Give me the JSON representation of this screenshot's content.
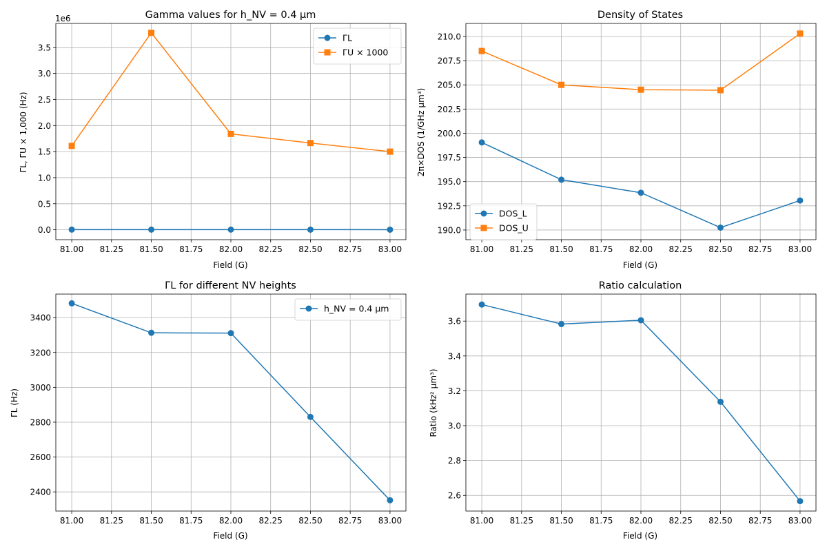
{
  "colors": {
    "blue": "#1f77b4",
    "orange": "#ff7f0e",
    "grid": "#b0b0b0"
  },
  "chart_data": [
    {
      "type": "line",
      "title": "Gamma values for h_NV = 0.4 μm",
      "xlabel": "Field (G)",
      "ylabel": "ΓL, ΓU × 1,000 (Hz)",
      "offset_text": "1e6",
      "x": [
        81.0,
        81.5,
        82.0,
        82.5,
        83.0
      ],
      "xlim": [
        80.9,
        83.1
      ],
      "ylim": [
        -190000,
        3960000
      ],
      "xticks": [
        81.0,
        81.25,
        81.5,
        81.75,
        82.0,
        82.25,
        82.5,
        82.75,
        83.0
      ],
      "xtick_labels": [
        "81.00",
        "81.25",
        "81.50",
        "81.75",
        "82.00",
        "82.25",
        "82.50",
        "82.75",
        "83.00"
      ],
      "yticks": [
        0,
        500000,
        1000000,
        1500000,
        2000000,
        2500000,
        3000000,
        3500000
      ],
      "ytick_labels": [
        "0.0",
        "0.5",
        "1.0",
        "1.5",
        "2.0",
        "2.5",
        "3.0",
        "3.5"
      ],
      "grid": true,
      "legend": "upper-right",
      "series": [
        {
          "name": "ΓL",
          "color": "#1f77b4",
          "marker": "circle",
          "values": [
            3480,
            3312,
            3310,
            2830,
            2350
          ]
        },
        {
          "name": "ΓU × 1000",
          "color": "#ff7f0e",
          "marker": "square",
          "values": [
            1610000,
            3780000,
            1840000,
            1665000,
            1500000
          ]
        }
      ]
    },
    {
      "type": "line",
      "title": "Density of States",
      "xlabel": "Field (G)",
      "ylabel": "2π×DOS (1/GHz μm³)",
      "offset_text": "",
      "x": [
        81.0,
        81.5,
        82.0,
        82.5,
        83.0
      ],
      "xlim": [
        80.9,
        83.1
      ],
      "ylim": [
        189.0,
        211.35
      ],
      "xticks": [
        81.0,
        81.25,
        81.5,
        81.75,
        82.0,
        82.25,
        82.5,
        82.75,
        83.0
      ],
      "xtick_labels": [
        "81.00",
        "81.25",
        "81.50",
        "81.75",
        "82.00",
        "82.25",
        "82.50",
        "82.75",
        "83.00"
      ],
      "yticks": [
        190.0,
        192.5,
        195.0,
        197.5,
        200.0,
        202.5,
        205.0,
        207.5,
        210.0
      ],
      "ytick_labels": [
        "190.0",
        "192.5",
        "195.0",
        "197.5",
        "200.0",
        "202.5",
        "205.0",
        "207.5",
        "210.0"
      ],
      "grid": true,
      "legend": "lower-left",
      "series": [
        {
          "name": "DOS_L",
          "color": "#1f77b4",
          "marker": "circle",
          "values": [
            199.05,
            195.2,
            193.85,
            190.25,
            193.05
          ]
        },
        {
          "name": "DOS_U",
          "color": "#ff7f0e",
          "marker": "square",
          "values": [
            208.5,
            205.0,
            204.5,
            204.45,
            210.3
          ]
        }
      ]
    },
    {
      "type": "line",
      "title": "ΓL for different NV heights",
      "xlabel": "Field (G)",
      "ylabel": "ΓL (Hz)",
      "offset_text": "",
      "x": [
        81.0,
        81.5,
        82.0,
        82.5,
        83.0
      ],
      "xlim": [
        80.9,
        83.1
      ],
      "ylim": [
        2290,
        3535
      ],
      "xticks": [
        81.0,
        81.25,
        81.5,
        81.75,
        82.0,
        82.25,
        82.5,
        82.75,
        83.0
      ],
      "xtick_labels": [
        "81.00",
        "81.25",
        "81.50",
        "81.75",
        "82.00",
        "82.25",
        "82.50",
        "82.75",
        "83.00"
      ],
      "yticks": [
        2400,
        2600,
        2800,
        3000,
        3200,
        3400
      ],
      "ytick_labels": [
        "2400",
        "2600",
        "2800",
        "3000",
        "3200",
        "3400"
      ],
      "grid": true,
      "legend": "upper-right",
      "series": [
        {
          "name": "h_NV = 0.4 μm",
          "color": "#1f77b4",
          "marker": "circle",
          "values": [
            3482,
            3313,
            3311,
            2830,
            2352
          ]
        }
      ]
    },
    {
      "type": "line",
      "title": "Ratio calculation",
      "xlabel": "Field (G)",
      "ylabel": "Ratio (kHz² μm³)",
      "offset_text": "",
      "x": [
        81.0,
        81.5,
        82.0,
        82.5,
        83.0
      ],
      "xlim": [
        80.9,
        83.1
      ],
      "ylim": [
        2.51,
        3.755
      ],
      "xticks": [
        81.0,
        81.25,
        81.5,
        81.75,
        82.0,
        82.25,
        82.5,
        82.75,
        83.0
      ],
      "xtick_labels": [
        "81.00",
        "81.25",
        "81.50",
        "81.75",
        "82.00",
        "82.25",
        "82.50",
        "82.75",
        "83.00"
      ],
      "yticks": [
        2.6,
        2.8,
        3.0,
        3.2,
        3.4,
        3.6
      ],
      "ytick_labels": [
        "2.6",
        "2.8",
        "3.0",
        "3.2",
        "3.4",
        "3.6"
      ],
      "grid": true,
      "legend": "none",
      "series": [
        {
          "values": [
            3.695,
            3.583,
            3.605,
            3.137,
            2.567
          ]
        }
      ]
    }
  ]
}
